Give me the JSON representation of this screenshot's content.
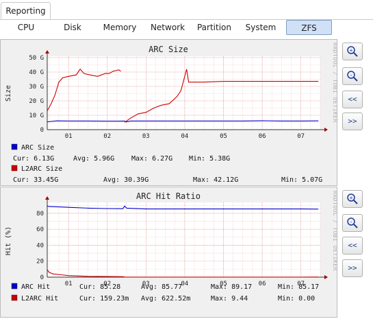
{
  "top_tab": {
    "label": "Reporting"
  },
  "subtabs": [
    {
      "label": "CPU"
    },
    {
      "label": "Disk"
    },
    {
      "label": "Memory"
    },
    {
      "label": "Network"
    },
    {
      "label": "Partition"
    },
    {
      "label": "System"
    },
    {
      "label": "ZFS"
    }
  ],
  "side_buttons": {
    "zoom_in": "+",
    "zoom_out": "-",
    "prev": "<<",
    "next": ">>"
  },
  "watermark": "RRDTOOL / TOBI OETIKER",
  "charts": [
    {
      "title": "ARC Size",
      "ylabel": "Size",
      "x_ticks": [
        "01",
        "02",
        "03",
        "04",
        "05",
        "06",
        "07"
      ],
      "y_ticks": [
        "0",
        "10 G",
        "20 G",
        "30 G",
        "40 G",
        "50 G"
      ],
      "legend": [
        {
          "name": "ARC Size",
          "color": "#0000cc",
          "cur": "Cur: 6.13G",
          "avg": "Avg: 5.96G",
          "max": "Max: 6.27G",
          "min": "Min: 5.38G"
        },
        {
          "name": "L2ARC Size",
          "color": "#cc0000",
          "cur": "Cur: 33.45G",
          "avg": "Avg: 30.39G",
          "max": "Max: 42.12G",
          "min": "Min: 5.07G"
        }
      ]
    },
    {
      "title": "ARC Hit Ratio",
      "ylabel": "Hit (%)",
      "x_ticks": [
        "01",
        "02",
        "03",
        "04",
        "05",
        "06",
        "07"
      ],
      "y_ticks": [
        "0",
        "20",
        "40",
        "60",
        "80"
      ],
      "legend": [
        {
          "name": "ARC Hit",
          "color": "#0000cc",
          "cur": "Cur: 85.28",
          "avg": "Avg: 85.77",
          "max": "Max: 89.17",
          "min": "Min: 85.17"
        },
        {
          "name": "L2ARC Hit",
          "color": "#cc0000",
          "cur": "Cur: 159.23m",
          "avg": "Avg: 622.52m",
          "max": "Max: 9.44",
          "min": "Min: 0.00"
        }
      ]
    }
  ],
  "chart_data": [
    {
      "type": "line",
      "title": "ARC Size",
      "ylabel": "Size",
      "ylim": [
        0,
        50
      ],
      "xlim": [
        0.45,
        7.5
      ],
      "series": [
        {
          "name": "ARC Size",
          "color": "#0000cc",
          "x": [
            0.45,
            0.7,
            1.0,
            1.5,
            2.0,
            2.3,
            2.45,
            2.48,
            2.6,
            3.0,
            3.5,
            4.0,
            4.5,
            5.0,
            5.5,
            6.0,
            6.5,
            7.0,
            7.45
          ],
          "y": [
            5.5,
            6.1,
            6.0,
            6.0,
            5.9,
            5.9,
            6.0,
            5.4,
            6.0,
            6.0,
            6.0,
            6.0,
            6.0,
            6.0,
            6.0,
            6.2,
            6.0,
            6.0,
            6.1
          ]
        },
        {
          "name": "L2ARC Size",
          "color": "#cc0000",
          "x": [
            0.45,
            0.55,
            0.65,
            0.75,
            0.85,
            1.0,
            1.2,
            1.3,
            1.4,
            1.55,
            1.75,
            1.95,
            2.05,
            2.15,
            2.3,
            2.35,
            2.5,
            2.7,
            3.0,
            3.3,
            3.6,
            3.8,
            3.9,
            4.0,
            4.05,
            4.1,
            4.5,
            5.0,
            5.5,
            6.0,
            6.5,
            7.0,
            7.45
          ],
          "y": [
            13,
            18,
            24,
            33,
            36,
            37,
            38,
            42,
            39,
            38,
            37,
            39,
            39,
            40.5,
            41.5,
            40.5,
            null,
            null,
            null,
            null,
            null,
            null,
            null,
            null,
            null,
            null,
            null,
            null,
            null,
            null,
            null,
            null,
            null
          ]
        },
        {
          "name": "L2ARC Size (segment 2)",
          "color": "#cc0000",
          "x": [
            2.45,
            2.6,
            2.8,
            3.0,
            3.2,
            3.4,
            3.6,
            3.8,
            3.9,
            4.0,
            4.05,
            4.1,
            4.5,
            5.0,
            5.5,
            6.0,
            6.5,
            7.0,
            7.45
          ],
          "y": [
            5.1,
            8,
            11,
            12,
            15,
            17,
            18,
            23,
            27,
            37,
            42,
            33,
            33,
            33.5,
            33.5,
            33.5,
            33.5,
            33.5,
            33.5
          ]
        }
      ]
    },
    {
      "type": "line",
      "title": "ARC Hit Ratio",
      "ylabel": "Hit (%)",
      "ylim": [
        0,
        92
      ],
      "xlim": [
        0.45,
        7.5
      ],
      "series": [
        {
          "name": "ARC Hit",
          "color": "#0000cc",
          "x": [
            0.45,
            0.5,
            0.8,
            1.0,
            1.5,
            2.0,
            2.4,
            2.45,
            2.5,
            3.0,
            4.0,
            5.0,
            6.0,
            7.0,
            7.45
          ],
          "y": [
            89.2,
            88.5,
            88,
            87.5,
            86.5,
            86,
            85.8,
            89,
            86.5,
            85.5,
            85.5,
            85.5,
            85.5,
            85.5,
            85.3
          ]
        },
        {
          "name": "L2ARC Hit",
          "color": "#cc0000",
          "x": [
            0.45,
            0.5,
            0.6,
            0.8,
            1.0,
            1.5,
            2.0,
            2.4,
            2.45,
            3.0,
            4.0,
            5.0,
            6.0,
            7.0,
            7.45
          ],
          "y": [
            9.4,
            6,
            4,
            3,
            2,
            1,
            0.8,
            0.6,
            0.2,
            0.1,
            0.1,
            0.1,
            0.1,
            0.1,
            0.16
          ]
        }
      ]
    }
  ]
}
